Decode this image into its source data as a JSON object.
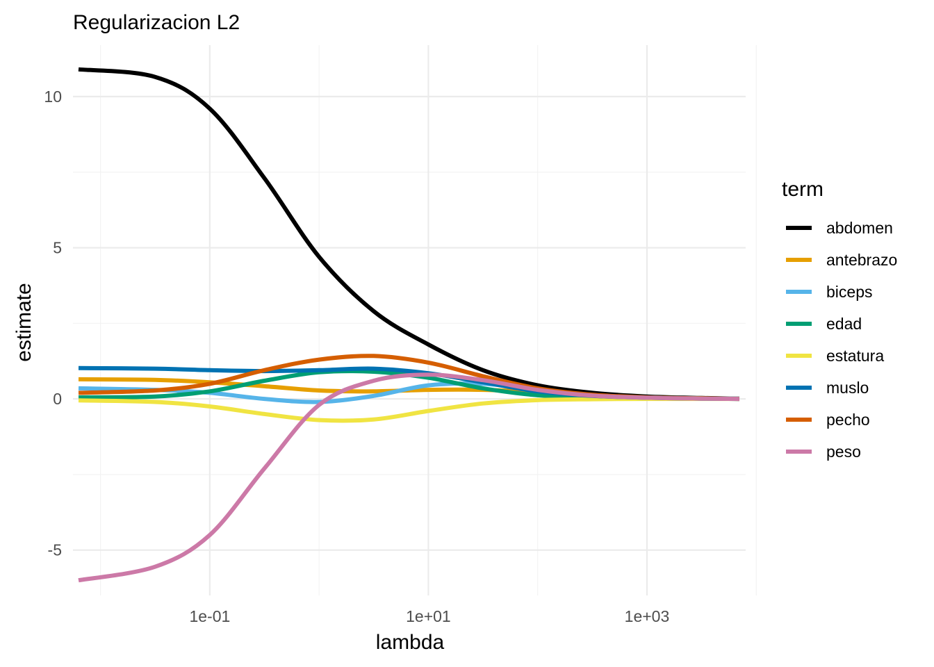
{
  "chart_data": {
    "type": "line",
    "title": "Regularizacion L2",
    "xlabel": "lambda",
    "ylabel": "estimate",
    "x_scale": "log10",
    "xlim": [
      0.0056,
      8000
    ],
    "ylim": [
      -6.5,
      11.7
    ],
    "x_ticks": [
      {
        "value": 0.1,
        "label": "1e-01"
      },
      {
        "value": 10,
        "label": "1e+01"
      },
      {
        "value": 1000,
        "label": "1e+03"
      }
    ],
    "y_ticks": [
      {
        "value": 10,
        "label": "10"
      },
      {
        "value": 5,
        "label": "5"
      },
      {
        "value": 0,
        "label": "0"
      },
      {
        "value": -5,
        "label": "-5"
      }
    ],
    "x_minor_ticks": [
      0.01,
      1,
      100,
      10000
    ],
    "y_minor_ticks": [
      -2.5,
      2.5,
      7.5
    ],
    "grid": true,
    "legend": {
      "title": "term",
      "placement": "right"
    },
    "series": [
      {
        "name": "abdomen",
        "color": "#000000",
        "x": [
          0.0063,
          0.0316,
          0.1,
          0.316,
          1,
          3.16,
          10,
          31.6,
          100,
          316,
          1000,
          3160,
          7000
        ],
        "y": [
          10.9,
          10.65,
          9.6,
          7.3,
          4.7,
          2.9,
          1.8,
          0.95,
          0.45,
          0.2,
          0.08,
          0.03,
          0.01
        ]
      },
      {
        "name": "antebrazo",
        "color": "#E69F00",
        "x": [
          0.0063,
          0.0316,
          0.1,
          0.316,
          1,
          3.16,
          10,
          31.6,
          100,
          316,
          1000,
          3160,
          7000
        ],
        "y": [
          0.65,
          0.63,
          0.55,
          0.42,
          0.28,
          0.25,
          0.3,
          0.3,
          0.22,
          0.1,
          0.04,
          0.02,
          0.01
        ]
      },
      {
        "name": "biceps",
        "color": "#56B4E9",
        "x": [
          0.0063,
          0.0316,
          0.1,
          0.316,
          1,
          3.16,
          10,
          31.6,
          100,
          316,
          1000,
          3160,
          7000
        ],
        "y": [
          0.35,
          0.3,
          0.2,
          0.0,
          -0.1,
          0.1,
          0.45,
          0.5,
          0.3,
          0.12,
          0.05,
          0.02,
          0.01
        ]
      },
      {
        "name": "edad",
        "color": "#009E73",
        "x": [
          0.0063,
          0.0316,
          0.1,
          0.316,
          1,
          3.16,
          10,
          31.6,
          100,
          316,
          1000,
          3160,
          7000
        ],
        "y": [
          0.05,
          0.08,
          0.25,
          0.6,
          0.88,
          0.9,
          0.7,
          0.35,
          0.12,
          0.05,
          0.02,
          0.01,
          0.0
        ]
      },
      {
        "name": "estatura",
        "color": "#F0E442",
        "x": [
          0.0063,
          0.0316,
          0.1,
          0.316,
          1,
          3.16,
          10,
          31.6,
          100,
          316,
          1000,
          3160,
          7000
        ],
        "y": [
          -0.05,
          -0.1,
          -0.25,
          -0.5,
          -0.7,
          -0.68,
          -0.4,
          -0.15,
          -0.04,
          -0.01,
          0.0,
          0.0,
          0.0
        ]
      },
      {
        "name": "muslo",
        "color": "#0072B2",
        "x": [
          0.0063,
          0.0316,
          0.1,
          0.316,
          1,
          3.16,
          10,
          31.6,
          100,
          316,
          1000,
          3160,
          7000
        ],
        "y": [
          1.02,
          1.0,
          0.95,
          0.92,
          0.95,
          1.0,
          0.85,
          0.55,
          0.25,
          0.1,
          0.04,
          0.01,
          0.0
        ]
      },
      {
        "name": "pecho",
        "color": "#D55E00",
        "x": [
          0.0063,
          0.0316,
          0.1,
          0.316,
          1,
          3.16,
          10,
          31.6,
          100,
          316,
          1000,
          3160,
          7000
        ],
        "y": [
          0.2,
          0.28,
          0.5,
          0.95,
          1.3,
          1.42,
          1.2,
          0.75,
          0.35,
          0.14,
          0.05,
          0.02,
          0.0
        ]
      },
      {
        "name": "peso",
        "color": "#CC79A7",
        "x": [
          0.0063,
          0.0316,
          0.1,
          0.316,
          1,
          3.16,
          10,
          31.6,
          100,
          316,
          1000,
          3160,
          7000
        ],
        "y": [
          -6.0,
          -5.55,
          -4.5,
          -2.3,
          -0.2,
          0.6,
          0.8,
          0.62,
          0.3,
          0.11,
          0.04,
          0.01,
          0.0
        ]
      }
    ]
  }
}
